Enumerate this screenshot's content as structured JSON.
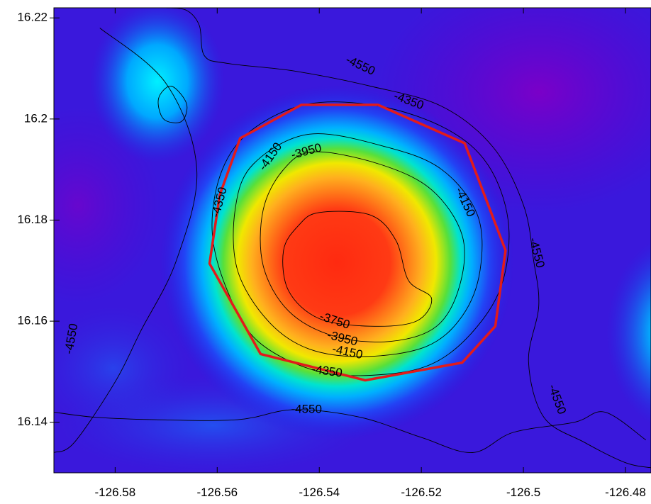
{
  "chart_data": {
    "type": "heatmap",
    "title": "",
    "xlabel": "",
    "ylabel": "",
    "xlim": [
      -126.592,
      -126.475
    ],
    "ylim": [
      16.13,
      16.222
    ],
    "x_ticks": [
      {
        "value": -126.58,
        "label": "-126.58"
      },
      {
        "value": -126.56,
        "label": "-126.56"
      },
      {
        "value": -126.54,
        "label": "-126.54"
      },
      {
        "value": -126.52,
        "label": "-126.52"
      },
      {
        "value": -126.5,
        "label": "-126.5"
      },
      {
        "value": -126.48,
        "label": "-126.48"
      }
    ],
    "y_ticks": [
      {
        "value": 16.22,
        "label": "16.22"
      },
      {
        "value": 16.2,
        "label": "16.2"
      },
      {
        "value": 16.18,
        "label": "16.18"
      },
      {
        "value": 16.16,
        "label": "16.16"
      },
      {
        "value": 16.14,
        "label": "16.14"
      }
    ],
    "z_range": [
      -4700,
      -3700
    ],
    "colormap": [
      "#6a00c8",
      "#2a1ee0",
      "#0060ff",
      "#00d8ff",
      "#00e070",
      "#a8e800",
      "#ffe000",
      "#ff9a1e",
      "#ff3018"
    ],
    "peak": {
      "x": -126.5335,
      "y": 16.172,
      "z": -3700
    },
    "contours": [
      {
        "level": -4550,
        "label": "-4550",
        "points": [
          [
            -126.583,
            16.218
          ],
          [
            -126.57,
            16.207
          ],
          [
            -126.564,
            16.19
          ],
          [
            -126.568,
            16.172
          ],
          [
            -126.575,
            16.158
          ],
          [
            -126.58,
            16.148
          ],
          [
            -126.588,
            16.136
          ],
          [
            -126.592,
            16.134
          ]
        ]
      },
      {
        "level": -4550,
        "label": "-4550",
        "points": [
          [
            -126.57,
            16.222
          ],
          [
            -126.566,
            16.2215
          ],
          [
            -126.5635,
            16.2185
          ],
          [
            -126.5625,
            16.2125
          ],
          [
            -126.558,
            16.211
          ],
          [
            -126.545,
            16.2095
          ],
          [
            -126.53,
            16.2065
          ],
          [
            -126.516,
            16.2025
          ],
          [
            -126.506,
            16.1945
          ],
          [
            -126.5,
            16.183
          ],
          [
            -126.498,
            16.172
          ],
          [
            -126.497,
            16.163
          ],
          [
            -126.499,
            16.152
          ],
          [
            -126.496,
            16.141
          ],
          [
            -126.488,
            16.136
          ],
          [
            -126.48,
            16.132
          ],
          [
            -126.475,
            16.131
          ]
        ]
      },
      {
        "level": -4550,
        "label": "-4550",
        "points": [
          [
            -126.592,
            16.142
          ],
          [
            -126.584,
            16.141
          ],
          [
            -126.572,
            16.1405
          ],
          [
            -126.556,
            16.1405
          ],
          [
            -126.545,
            16.1425
          ],
          [
            -126.532,
            16.141
          ],
          [
            -126.52,
            16.137
          ],
          [
            -126.51,
            16.134
          ],
          [
            -126.502,
            16.138
          ],
          [
            -126.49,
            16.14
          ],
          [
            -126.484,
            16.142
          ],
          [
            -126.476,
            16.1365
          ]
        ]
      },
      {
        "level": -4550,
        "label": "",
        "points": [
          [
            -126.569,
            16.2065
          ],
          [
            -126.566,
            16.203
          ],
          [
            -126.567,
            16.1995
          ],
          [
            -126.5705,
            16.2
          ],
          [
            -126.5715,
            16.204
          ],
          [
            -126.569,
            16.2065
          ]
        ]
      },
      {
        "level": -4350,
        "label": "-4350",
        "points": [
          [
            -126.542,
            16.203
          ],
          [
            -126.528,
            16.2025
          ],
          [
            -126.515,
            16.198
          ],
          [
            -126.507,
            16.191
          ],
          [
            -126.503,
            16.18
          ],
          [
            -126.504,
            16.168
          ],
          [
            -126.509,
            16.159
          ],
          [
            -126.517,
            16.152
          ],
          [
            -126.527,
            16.1495
          ],
          [
            -126.54,
            16.15
          ],
          [
            -126.552,
            16.156
          ],
          [
            -126.558,
            16.166
          ],
          [
            -126.561,
            16.178
          ],
          [
            -126.559,
            16.19
          ],
          [
            -126.553,
            16.198
          ],
          [
            -126.542,
            16.203
          ]
        ]
      },
      {
        "level": -4150,
        "label": "-4150",
        "points": [
          [
            -126.542,
            16.197
          ],
          [
            -126.527,
            16.1945
          ],
          [
            -126.516,
            16.19
          ],
          [
            -126.509,
            16.181
          ],
          [
            -126.5085,
            16.17
          ],
          [
            -126.512,
            16.161
          ],
          [
            -126.519,
            16.155
          ],
          [
            -126.531,
            16.153
          ],
          [
            -126.542,
            16.1545
          ],
          [
            -126.55,
            16.16
          ],
          [
            -126.556,
            16.17
          ],
          [
            -126.5565,
            16.182
          ],
          [
            -126.553,
            16.191
          ],
          [
            -126.542,
            16.197
          ]
        ]
      },
      {
        "level": -3950,
        "label": "-3950",
        "points": [
          [
            -126.541,
            16.1935
          ],
          [
            -126.528,
            16.191
          ],
          [
            -126.518,
            16.186
          ],
          [
            -126.512,
            16.177
          ],
          [
            -126.5125,
            16.167
          ],
          [
            -126.517,
            16.159
          ],
          [
            -126.526,
            16.156
          ],
          [
            -126.537,
            16.157
          ],
          [
            -126.546,
            16.162
          ],
          [
            -126.551,
            16.171
          ],
          [
            -126.551,
            16.182
          ],
          [
            -126.547,
            16.19
          ],
          [
            -126.541,
            16.1935
          ]
        ]
      },
      {
        "level": -3750,
        "label": "-3750",
        "points": [
          [
            -126.54,
            16.1815
          ],
          [
            -126.53,
            16.181
          ],
          [
            -126.525,
            16.176
          ],
          [
            -126.5225,
            16.168
          ],
          [
            -126.518,
            16.1645
          ],
          [
            -126.521,
            16.16
          ],
          [
            -126.53,
            16.159
          ],
          [
            -126.54,
            16.1605
          ],
          [
            -126.546,
            16.166
          ],
          [
            -126.547,
            16.174
          ],
          [
            -126.544,
            16.179
          ],
          [
            -126.54,
            16.1815
          ]
        ]
      }
    ],
    "contour_labels": [
      {
        "text": "-4550",
        "x": -126.532,
        "y": 16.2105,
        "angle": 25
      },
      {
        "text": "-4350",
        "x": -126.5225,
        "y": 16.2035,
        "angle": 20
      },
      {
        "text": "-4150",
        "x": -126.5495,
        "y": 16.1925,
        "angle": -55
      },
      {
        "text": "-3950",
        "x": -126.5425,
        "y": 16.1935,
        "angle": -15
      },
      {
        "text": "-4350",
        "x": -126.5595,
        "y": 16.1835,
        "angle": -75
      },
      {
        "text": "-4150",
        "x": -126.5115,
        "y": 16.1835,
        "angle": 65
      },
      {
        "text": "-4550",
        "x": -126.4975,
        "y": 16.1735,
        "angle": 75
      },
      {
        "text": "-3750",
        "x": -126.537,
        "y": 16.16,
        "angle": 18
      },
      {
        "text": "-3950",
        "x": -126.5355,
        "y": 16.1565,
        "angle": 14
      },
      {
        "text": "-4150",
        "x": -126.5345,
        "y": 16.1538,
        "angle": 12
      },
      {
        "text": "-4350",
        "x": -126.5385,
        "y": 16.15,
        "angle": 8
      },
      {
        "text": "-4550",
        "x": -126.5885,
        "y": 16.1565,
        "angle": -80
      },
      {
        "text": "-4550",
        "x": -126.5425,
        "y": 16.1425,
        "angle": 0
      },
      {
        "text": "-4550",
        "x": -126.4935,
        "y": 16.1445,
        "angle": 70
      }
    ],
    "boundary": {
      "color": "#e21b1b",
      "points": [
        [
          -126.5435,
          16.2028
        ],
        [
          -126.5285,
          16.2028
        ],
        [
          -126.5115,
          16.1952
        ],
        [
          -126.5035,
          16.174
        ],
        [
          -126.5055,
          16.159
        ],
        [
          -126.512,
          16.1518
        ],
        [
          -126.531,
          16.1483
        ],
        [
          -126.5515,
          16.1535
        ],
        [
          -126.5615,
          16.1714
        ],
        [
          -126.5595,
          16.185
        ],
        [
          -126.5555,
          16.1962
        ],
        [
          -126.5435,
          16.2028
        ]
      ]
    }
  }
}
